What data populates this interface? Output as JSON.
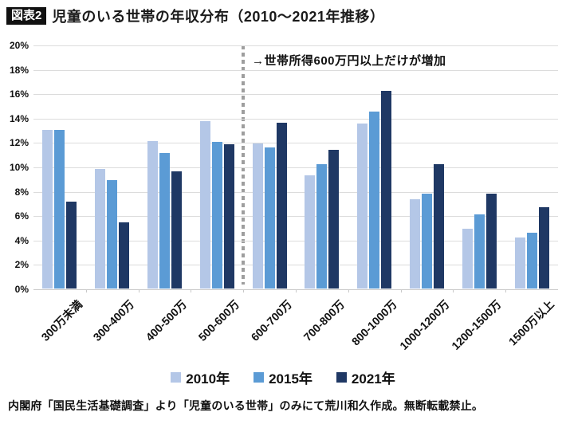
{
  "header": {
    "badge": "図表2",
    "title": "児童のいる世帯の年収分布（2010〜2021年推移）"
  },
  "annotation": "→世帯所得600万円以上だけが増加",
  "footer": "内閣府「国民生活基礎調査」より「児童のいる世帯」のみにて荒川和久作成。無断転載禁止。",
  "colors": {
    "series_2010": "#b4c7e7",
    "series_2015": "#5b9bd5",
    "series_2021": "#1f3864",
    "gridline": "#dcdcdc",
    "divider": "#9e9e9e",
    "badge_bg": "#111111"
  },
  "chart_data": {
    "type": "bar",
    "title": "児童のいる世帯の年収分布（2010〜2021年推移）",
    "categories": [
      "300万未満",
      "300-400万",
      "400-500万",
      "500-600万",
      "600-700万",
      "700-800万",
      "800-1000万",
      "1000-1200万",
      "1200-1500万",
      "1500万以上"
    ],
    "series": [
      {
        "name": "2010年",
        "color": "#b4c7e7",
        "values": [
          13.0,
          9.8,
          12.1,
          13.7,
          11.9,
          9.3,
          13.5,
          7.3,
          4.9,
          4.2
        ]
      },
      {
        "name": "2015年",
        "color": "#5b9bd5",
        "values": [
          13.0,
          8.9,
          11.1,
          12.0,
          11.6,
          10.2,
          14.5,
          7.8,
          6.1,
          4.6
        ]
      },
      {
        "name": "2021年",
        "color": "#1f3864",
        "values": [
          7.1,
          5.4,
          9.6,
          11.8,
          13.6,
          11.4,
          16.2,
          10.2,
          7.8,
          6.7
        ]
      }
    ],
    "xlabel": "",
    "ylabel": "",
    "ylim": [
      0,
      20
    ],
    "ytick_step": 2,
    "ytick_suffix": "%",
    "grid": true,
    "legend_position": "bottom",
    "divider_after_category_index": 3,
    "annotation": "→世帯所得600万円以上だけが増加"
  }
}
